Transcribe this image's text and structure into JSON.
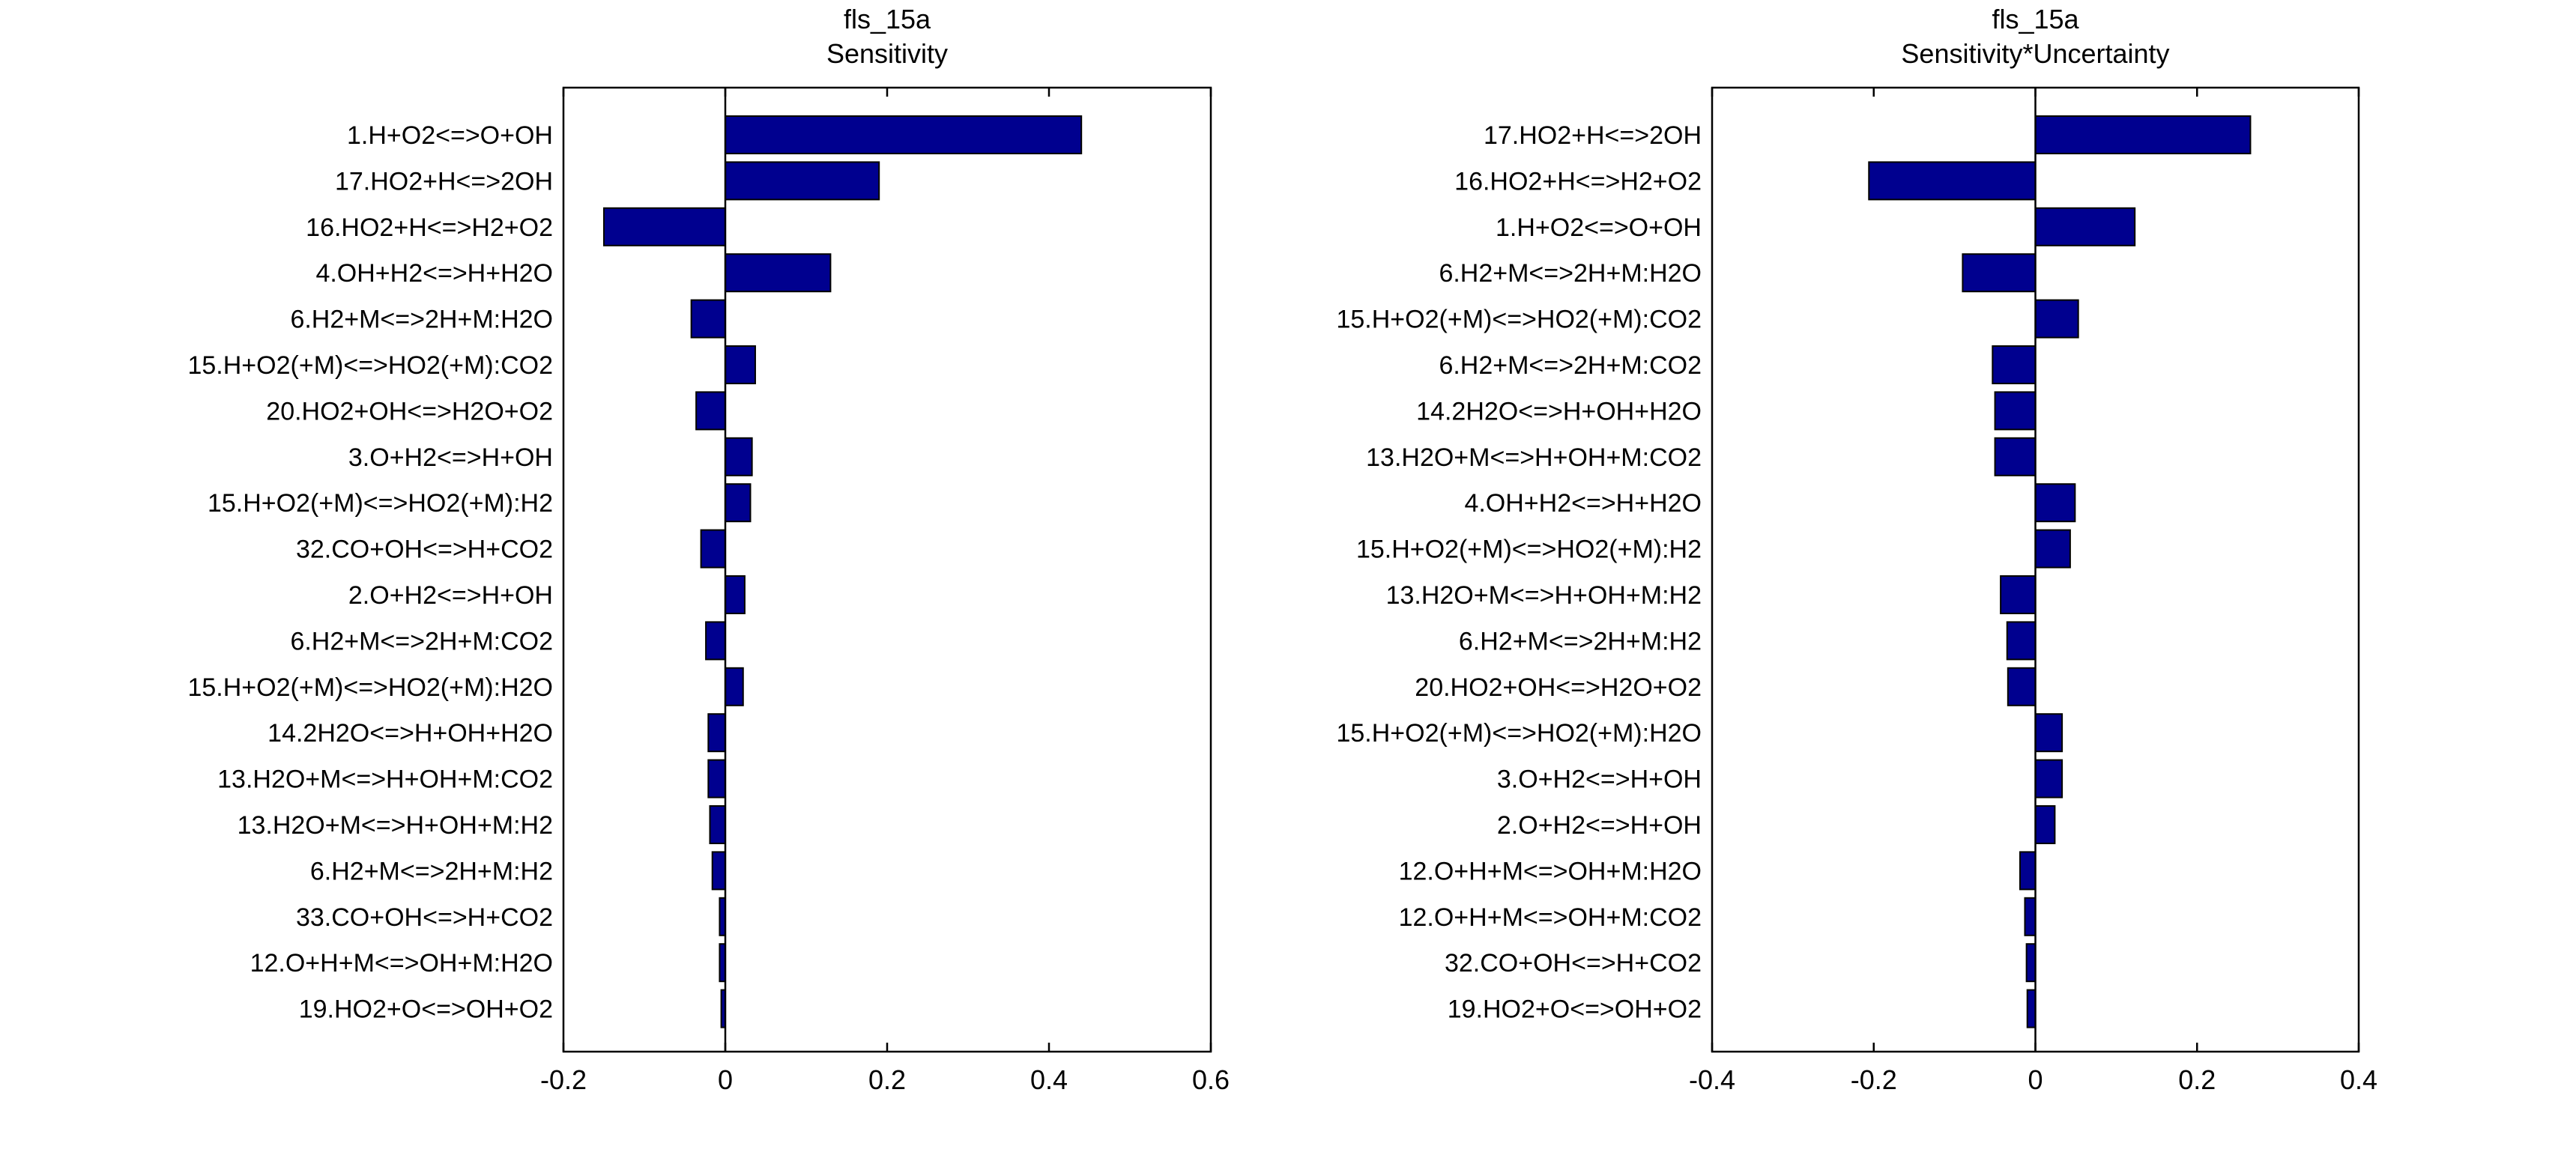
{
  "colors": {
    "bar": "#00008f",
    "axis": "#000000",
    "background": "#ffffff"
  },
  "chart_data": [
    {
      "type": "bar",
      "orientation": "horizontal",
      "title": "fls_15a",
      "subtitle": "Sensitivity",
      "xlabel": "",
      "ylabel": "",
      "xlim": [
        -0.2,
        0.6
      ],
      "xticks": [
        -0.2,
        0,
        0.2,
        0.4,
        0.6
      ],
      "xtick_labels": [
        "-0.2",
        "0",
        "0.2",
        "0.4",
        "0.6"
      ],
      "grid": false,
      "categories": [
        "1.H+O2<=>O+OH",
        "17.HO2+H<=>2OH",
        "16.HO2+H<=>H2+O2",
        "4.OH+H2<=>H+H2O",
        "6.H2+M<=>2H+M:H2O",
        "15.H+O2(+M)<=>HO2(+M):CO2",
        "20.HO2+OH<=>H2O+O2",
        "3.O+H2<=>H+OH",
        "15.H+O2(+M)<=>HO2(+M):H2",
        "32.CO+OH<=>H+CO2",
        "2.O+H2<=>H+OH",
        "6.H2+M<=>2H+M:CO2",
        "15.H+O2(+M)<=>HO2(+M):H2O",
        "14.2H2O<=>H+OH+H2O",
        "13.H2O+M<=>H+OH+M:CO2",
        "13.H2O+M<=>H+OH+M:H2",
        "6.H2+M<=>2H+M:H2",
        "33.CO+OH<=>H+CO2",
        "12.O+H+M<=>OH+M:H2O",
        "19.HO2+O<=>OH+O2"
      ],
      "values": [
        0.44,
        0.19,
        -0.15,
        0.13,
        -0.042,
        0.037,
        -0.036,
        0.033,
        0.031,
        -0.03,
        0.024,
        -0.024,
        0.022,
        -0.021,
        -0.021,
        -0.019,
        -0.016,
        -0.007,
        -0.007,
        -0.005
      ]
    },
    {
      "type": "bar",
      "orientation": "horizontal",
      "title": "fls_15a",
      "subtitle": "Sensitivity*Uncertainty",
      "xlabel": "",
      "ylabel": "",
      "xlim": [
        -0.4,
        0.4
      ],
      "xticks": [
        -0.4,
        -0.2,
        0,
        0.2,
        0.4
      ],
      "xtick_labels": [
        "-0.4",
        "-0.2",
        "0",
        "0.2",
        "0.4"
      ],
      "grid": false,
      "categories": [
        "17.HO2+H<=>2OH",
        "16.HO2+H<=>H2+O2",
        "1.H+O2<=>O+OH",
        "6.H2+M<=>2H+M:H2O",
        "15.H+O2(+M)<=>HO2(+M):CO2",
        "6.H2+M<=>2H+M:CO2",
        "14.2H2O<=>H+OH+H2O",
        "13.H2O+M<=>H+OH+M:CO2",
        "4.OH+H2<=>H+H2O",
        "15.H+O2(+M)<=>HO2(+M):H2",
        "13.H2O+M<=>H+OH+M:H2",
        "6.H2+M<=>2H+M:H2",
        "20.HO2+OH<=>H2O+O2",
        "15.H+O2(+M)<=>HO2(+M):H2O",
        "3.O+H2<=>H+OH",
        "2.O+H2<=>H+OH",
        "12.O+H+M<=>OH+M:H2O",
        "12.O+H+M<=>OH+M:CO2",
        "32.CO+OH<=>H+CO2",
        "19.HO2+O<=>OH+O2"
      ],
      "values": [
        0.266,
        -0.206,
        0.123,
        -0.09,
        0.053,
        -0.053,
        -0.05,
        -0.05,
        0.049,
        0.043,
        -0.043,
        -0.035,
        -0.034,
        0.033,
        0.033,
        0.024,
        -0.019,
        -0.013,
        -0.011,
        -0.01
      ]
    }
  ]
}
